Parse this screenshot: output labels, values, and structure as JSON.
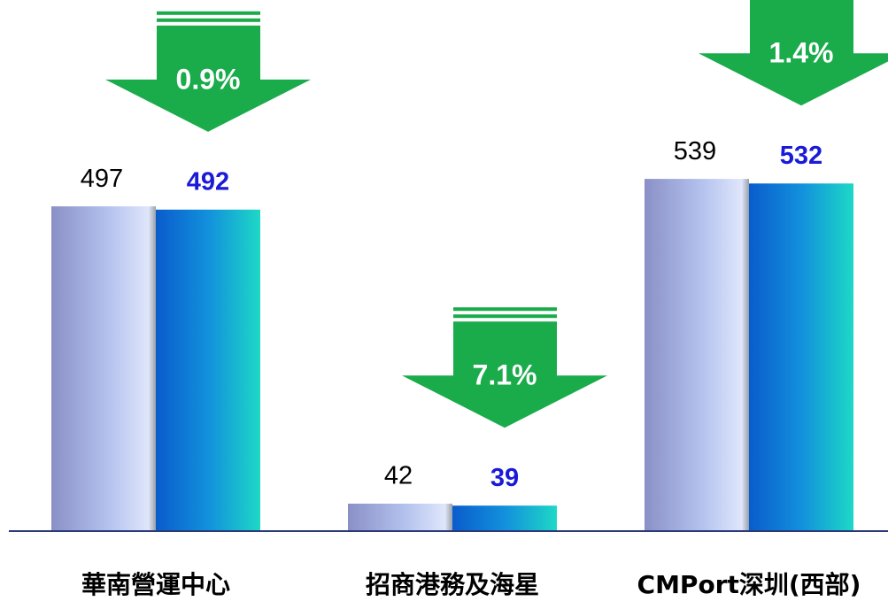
{
  "chart_data": {
    "type": "bar",
    "categories": [
      "華南營運中心",
      "招商港務及海星",
      "CMPort深圳(西部)"
    ],
    "series": [
      {
        "color": "#b4c2ee",
        "values": [
          497,
          42,
          539
        ]
      },
      {
        "color": "#1290dc",
        "values": [
          492,
          39,
          532
        ]
      }
    ],
    "changes": [
      0.9,
      7.1,
      1.4
    ],
    "change_labels": [
      "0.9%",
      "7.1%",
      "1.4%"
    ],
    "change_color": "#1aab4b",
    "ylim": [
      0,
      550
    ]
  }
}
